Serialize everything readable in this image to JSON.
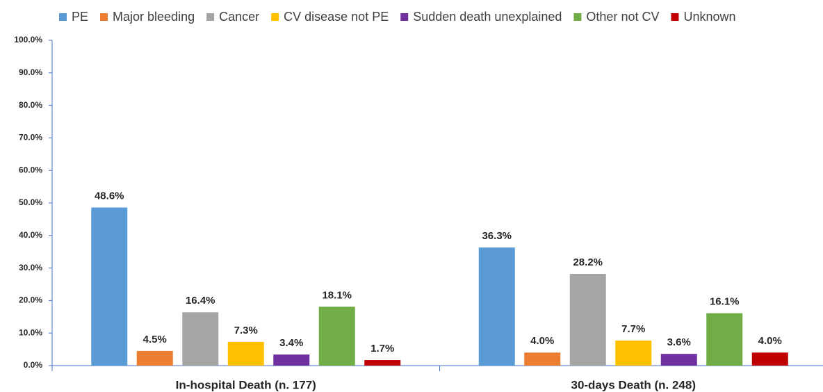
{
  "chart_data": {
    "type": "bar",
    "categories": [
      "In-hospital Death (n. 177)",
      "30-days Death (n. 248)"
    ],
    "series": [
      {
        "name": "PE",
        "color": "#5b9bd5",
        "values": [
          48.6,
          36.3
        ],
        "value_labels": [
          "48.6%",
          "36.3%"
        ]
      },
      {
        "name": "Major bleeding",
        "color": "#ed7d31",
        "values": [
          4.5,
          4.0
        ],
        "value_labels": [
          "4.5%",
          "4.0%"
        ]
      },
      {
        "name": "Cancer",
        "color": "#a5a5a5",
        "values": [
          16.4,
          28.2
        ],
        "value_labels": [
          "16.4%",
          "28.2%"
        ]
      },
      {
        "name": "CV disease not PE",
        "color": "#ffc000",
        "values": [
          7.3,
          7.7
        ],
        "value_labels": [
          "7.3%",
          "7.7%"
        ]
      },
      {
        "name": "Sudden death unexplained",
        "color": "#7030a0",
        "values": [
          3.4,
          3.6
        ],
        "value_labels": [
          "3.4%",
          "3.6%"
        ]
      },
      {
        "name": "Other not CV",
        "color": "#70ad47",
        "values": [
          18.1,
          16.1
        ],
        "value_labels": [
          "18.1%",
          "16.1%"
        ]
      },
      {
        "name": "Unknown",
        "color": "#c00000",
        "values": [
          1.7,
          4.0
        ],
        "value_labels": [
          "1.7%",
          "4.0%"
        ]
      }
    ],
    "ylim": [
      0,
      100
    ],
    "yticks": [
      {
        "value": 0,
        "label": "0.0%"
      },
      {
        "value": 10,
        "label": "10.0%"
      },
      {
        "value": 20,
        "label": "20.0%"
      },
      {
        "value": 30,
        "label": "30.0%"
      },
      {
        "value": 40,
        "label": "40.0%"
      },
      {
        "value": 50,
        "label": "50.0%"
      },
      {
        "value": 60,
        "label": "60.0%"
      },
      {
        "value": 70,
        "label": "70.0%"
      },
      {
        "value": 80,
        "label": "80.0%"
      },
      {
        "value": 90,
        "label": "90.0%"
      },
      {
        "value": 100,
        "label": "100.0%"
      }
    ],
    "legend": "top",
    "grid": false
  }
}
